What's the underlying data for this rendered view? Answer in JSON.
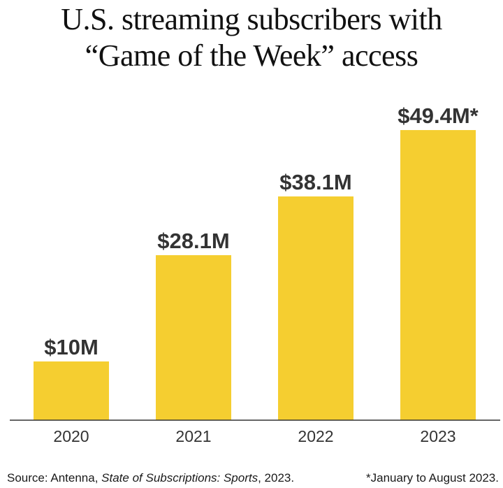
{
  "title_lines": [
    "U.S. streaming subscribers with",
    "“Game of the Week” access"
  ],
  "footer": {
    "source_prefix": "Source: Antenna, ",
    "source_italic": "State of Subscriptions: Sports",
    "source_suffix": ", 2023.",
    "note": "*January to August 2023."
  },
  "colors": {
    "bar": "#F5CE30",
    "axis": "#333333",
    "label": "#333333"
  },
  "chart_data": {
    "type": "bar",
    "title": "U.S. streaming subscribers with “Game of the Week” access",
    "categories": [
      "2020",
      "2021",
      "2022",
      "2023"
    ],
    "values": [
      10,
      28.1,
      38.1,
      49.4
    ],
    "data_labels": [
      "$10M",
      "$28.1M",
      "$38.1M",
      "$49.4M*"
    ],
    "xlabel": "",
    "ylabel": "",
    "ylim": [
      0,
      50
    ],
    "grid": false,
    "legend": "none"
  }
}
